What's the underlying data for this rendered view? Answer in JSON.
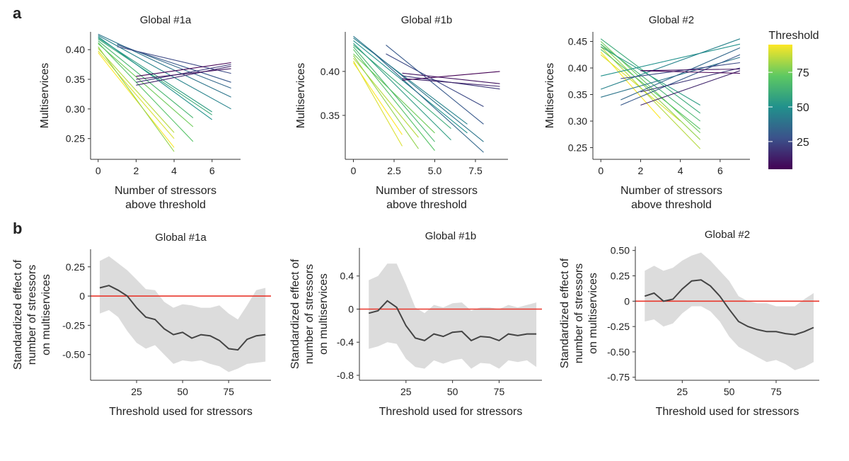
{
  "panel_labels": {
    "a": "a",
    "b": "b"
  },
  "colorbar": {
    "title": "Threshold",
    "ticks": [
      25,
      50,
      75
    ],
    "range": [
      5,
      95
    ],
    "colors": [
      "#440154",
      "#3b528b",
      "#21918c",
      "#5ec962",
      "#fde725"
    ]
  },
  "chart_data": [
    {
      "type": "line",
      "panel": "a",
      "title": "Global #1a",
      "xlabel": [
        "Number of stressors",
        "above threshold"
      ],
      "ylabel": "Multiservices",
      "xlim": [
        -0.4,
        7.5
      ],
      "ylim": [
        0.215,
        0.43
      ],
      "xticks": [
        0,
        2,
        4,
        6
      ],
      "yticks": [
        0.25,
        0.3,
        0.35,
        0.4
      ],
      "ytick_labels": [
        "0.25",
        "0.30",
        "0.35",
        "0.40"
      ],
      "series_note": "one regression line per threshold (colored by threshold)",
      "lines": [
        {
          "threshold": 95,
          "x": [
            0,
            4
          ],
          "y": [
            0.395,
            0.235
          ]
        },
        {
          "threshold": 90,
          "x": [
            0,
            4
          ],
          "y": [
            0.398,
            0.25
          ]
        },
        {
          "threshold": 85,
          "x": [
            0,
            4
          ],
          "y": [
            0.402,
            0.26
          ]
        },
        {
          "threshold": 80,
          "x": [
            0,
            4
          ],
          "y": [
            0.405,
            0.228
          ]
        },
        {
          "threshold": 75,
          "x": [
            0,
            5
          ],
          "y": [
            0.41,
            0.27
          ]
        },
        {
          "threshold": 70,
          "x": [
            0,
            5
          ],
          "y": [
            0.412,
            0.245
          ]
        },
        {
          "threshold": 65,
          "x": [
            0,
            5
          ],
          "y": [
            0.415,
            0.285
          ]
        },
        {
          "threshold": 60,
          "x": [
            0,
            6
          ],
          "y": [
            0.418,
            0.29
          ]
        },
        {
          "threshold": 55,
          "x": [
            0,
            6
          ],
          "y": [
            0.42,
            0.295
          ]
        },
        {
          "threshold": 50,
          "x": [
            0,
            6
          ],
          "y": [
            0.422,
            0.282
          ]
        },
        {
          "threshold": 45,
          "x": [
            0,
            7
          ],
          "y": [
            0.424,
            0.3
          ]
        },
        {
          "threshold": 40,
          "x": [
            0,
            7
          ],
          "y": [
            0.426,
            0.32
          ]
        },
        {
          "threshold": 35,
          "x": [
            1,
            7
          ],
          "y": [
            0.41,
            0.335
          ]
        },
        {
          "threshold": 30,
          "x": [
            1,
            7
          ],
          "y": [
            0.408,
            0.345
          ]
        },
        {
          "threshold": 25,
          "x": [
            1,
            7
          ],
          "y": [
            0.405,
            0.36
          ]
        },
        {
          "threshold": 20,
          "x": [
            2,
            7
          ],
          "y": [
            0.345,
            0.375
          ]
        },
        {
          "threshold": 15,
          "x": [
            2,
            7
          ],
          "y": [
            0.34,
            0.372
          ]
        },
        {
          "threshold": 10,
          "x": [
            2,
            7
          ],
          "y": [
            0.35,
            0.368
          ]
        },
        {
          "threshold": 5,
          "x": [
            2,
            7
          ],
          "y": [
            0.355,
            0.378
          ]
        }
      ]
    },
    {
      "type": "line",
      "panel": "a",
      "title": "Global #1b",
      "xlabel": [
        "Number of stressors",
        "above threshold"
      ],
      "ylabel": "Multiservices",
      "xlim": [
        -0.5,
        9.5
      ],
      "ylim": [
        0.3,
        0.445
      ],
      "xticks": [
        0,
        2.5,
        5.0,
        7.5
      ],
      "xtick_labels": [
        "0",
        "2.5",
        "5.0",
        "7.5"
      ],
      "yticks": [
        0.35,
        0.4
      ],
      "ytick_labels": [
        "0.35",
        "0.40"
      ],
      "series_note": "one regression line per threshold (colored by threshold)",
      "lines": [
        {
          "threshold": 95,
          "x": [
            0,
            3
          ],
          "y": [
            0.41,
            0.328
          ]
        },
        {
          "threshold": 90,
          "x": [
            0,
            3
          ],
          "y": [
            0.412,
            0.315
          ]
        },
        {
          "threshold": 85,
          "x": [
            0,
            4
          ],
          "y": [
            0.415,
            0.325
          ]
        },
        {
          "threshold": 80,
          "x": [
            0,
            4
          ],
          "y": [
            0.418,
            0.312
          ]
        },
        {
          "threshold": 75,
          "x": [
            0,
            5
          ],
          "y": [
            0.42,
            0.33
          ]
        },
        {
          "threshold": 70,
          "x": [
            0,
            5
          ],
          "y": [
            0.425,
            0.31
          ]
        },
        {
          "threshold": 65,
          "x": [
            0,
            5
          ],
          "y": [
            0.428,
            0.32
          ]
        },
        {
          "threshold": 60,
          "x": [
            0,
            6
          ],
          "y": [
            0.43,
            0.335
          ]
        },
        {
          "threshold": 55,
          "x": [
            0,
            6
          ],
          "y": [
            0.432,
            0.322
          ]
        },
        {
          "threshold": 50,
          "x": [
            0,
            7
          ],
          "y": [
            0.435,
            0.33
          ]
        },
        {
          "threshold": 45,
          "x": [
            0,
            7
          ],
          "y": [
            0.438,
            0.34
          ]
        },
        {
          "threshold": 40,
          "x": [
            0,
            8
          ],
          "y": [
            0.44,
            0.32
          ]
        },
        {
          "threshold": 35,
          "x": [
            1,
            8
          ],
          "y": [
            0.425,
            0.308
          ]
        },
        {
          "threshold": 30,
          "x": [
            2,
            8
          ],
          "y": [
            0.43,
            0.34
          ]
        },
        {
          "threshold": 25,
          "x": [
            2,
            8
          ],
          "y": [
            0.42,
            0.36
          ]
        },
        {
          "threshold": 20,
          "x": [
            3,
            9
          ],
          "y": [
            0.395,
            0.38
          ]
        },
        {
          "threshold": 15,
          "x": [
            3,
            9
          ],
          "y": [
            0.392,
            0.383
          ]
        },
        {
          "threshold": 10,
          "x": [
            3,
            9
          ],
          "y": [
            0.398,
            0.386
          ]
        },
        {
          "threshold": 5,
          "x": [
            3,
            9
          ],
          "y": [
            0.39,
            0.4
          ]
        }
      ]
    },
    {
      "type": "line",
      "panel": "a",
      "title": "Global #2",
      "xlabel": [
        "Number of stressors",
        "above threshold"
      ],
      "ylabel": "Multiservices",
      "xlim": [
        -0.4,
        7.5
      ],
      "ylim": [
        0.228,
        0.468
      ],
      "xticks": [
        0,
        2,
        4,
        6
      ],
      "yticks": [
        0.25,
        0.3,
        0.35,
        0.4,
        0.45
      ],
      "ytick_labels": [
        "0.25",
        "0.30",
        "0.35",
        "0.40",
        "0.45"
      ],
      "series_note": "one regression line per threshold (colored by threshold)",
      "lines": [
        {
          "threshold": 95,
          "x": [
            0,
            3
          ],
          "y": [
            0.43,
            0.305
          ]
        },
        {
          "threshold": 90,
          "x": [
            0,
            4
          ],
          "y": [
            0.425,
            0.3
          ]
        },
        {
          "threshold": 85,
          "x": [
            0,
            5
          ],
          "y": [
            0.44,
            0.248
          ]
        },
        {
          "threshold": 80,
          "x": [
            0,
            5
          ],
          "y": [
            0.445,
            0.265
          ]
        },
        {
          "threshold": 75,
          "x": [
            0,
            5
          ],
          "y": [
            0.45,
            0.278
          ]
        },
        {
          "threshold": 70,
          "x": [
            0,
            5
          ],
          "y": [
            0.435,
            0.285
          ]
        },
        {
          "threshold": 65,
          "x": [
            0,
            5
          ],
          "y": [
            0.445,
            0.3
          ]
        },
        {
          "threshold": 60,
          "x": [
            0,
            5
          ],
          "y": [
            0.455,
            0.315
          ]
        },
        {
          "threshold": 55,
          "x": [
            0,
            5
          ],
          "y": [
            0.44,
            0.33
          ]
        },
        {
          "threshold": 50,
          "x": [
            0,
            7
          ],
          "y": [
            0.385,
            0.445
          ]
        },
        {
          "threshold": 45,
          "x": [
            0,
            7
          ],
          "y": [
            0.36,
            0.455
          ]
        },
        {
          "threshold": 40,
          "x": [
            0,
            7
          ],
          "y": [
            0.345,
            0.42
          ]
        },
        {
          "threshold": 35,
          "x": [
            1,
            7
          ],
          "y": [
            0.34,
            0.438
          ]
        },
        {
          "threshold": 30,
          "x": [
            1,
            7
          ],
          "y": [
            0.33,
            0.425
          ]
        },
        {
          "threshold": 25,
          "x": [
            1,
            7
          ],
          "y": [
            0.38,
            0.41
          ]
        },
        {
          "threshold": 20,
          "x": [
            2,
            7
          ],
          "y": [
            0.355,
            0.4
          ]
        },
        {
          "threshold": 15,
          "x": [
            2,
            7
          ],
          "y": [
            0.33,
            0.395
          ]
        },
        {
          "threshold": 10,
          "x": [
            2,
            7
          ],
          "y": [
            0.395,
            0.398
          ]
        },
        {
          "threshold": 5,
          "x": [
            2,
            7
          ],
          "y": [
            0.395,
            0.39
          ]
        }
      ]
    },
    {
      "type": "line",
      "panel": "b",
      "title": "Global #1a",
      "xlabel": "Threshold used for stressors",
      "ylabel": [
        "Standardized effect of",
        "number of stressors",
        "on multiservices"
      ],
      "xlim": [
        0,
        98
      ],
      "ylim": [
        -0.72,
        0.4
      ],
      "xticks": [
        25,
        50,
        75
      ],
      "yticks": [
        -0.5,
        -0.25,
        0,
        0.25
      ],
      "ytick_labels": [
        "-0.50",
        "-0.25",
        "0",
        "0.25"
      ],
      "zero_line": true,
      "x": [
        5,
        10,
        15,
        20,
        25,
        30,
        35,
        40,
        45,
        50,
        55,
        60,
        65,
        70,
        75,
        80,
        85,
        90,
        95
      ],
      "y": [
        0.07,
        0.09,
        0.05,
        0.0,
        -0.1,
        -0.18,
        -0.2,
        -0.28,
        -0.33,
        -0.31,
        -0.36,
        -0.33,
        -0.34,
        -0.38,
        -0.45,
        -0.46,
        -0.37,
        -0.34,
        -0.33
      ],
      "lower": [
        -0.15,
        -0.12,
        -0.18,
        -0.3,
        -0.4,
        -0.45,
        -0.42,
        -0.5,
        -0.58,
        -0.55,
        -0.56,
        -0.55,
        -0.58,
        -0.6,
        -0.65,
        -0.62,
        -0.58,
        -0.57,
        -0.56
      ],
      "upper": [
        0.3,
        0.34,
        0.28,
        0.22,
        0.14,
        0.06,
        0.05,
        -0.05,
        -0.1,
        -0.07,
        -0.08,
        -0.1,
        -0.1,
        -0.08,
        -0.15,
        -0.2,
        -0.08,
        0.05,
        0.07
      ]
    },
    {
      "type": "line",
      "panel": "b",
      "title": "Global #1b",
      "xlabel": "Threshold used for stressors",
      "ylabel": [
        "Standardized effect of",
        "number of stressors",
        "on multiservices"
      ],
      "xlim": [
        0,
        98
      ],
      "ylim": [
        -0.86,
        0.74
      ],
      "xticks": [
        25,
        50,
        75
      ],
      "yticks": [
        -0.8,
        -0.4,
        0,
        0.4
      ],
      "ytick_labels": [
        "-0.8",
        "-0.4",
        "0",
        "0.4"
      ],
      "zero_line": true,
      "x": [
        5,
        10,
        15,
        20,
        25,
        30,
        35,
        40,
        45,
        50,
        55,
        60,
        65,
        70,
        75,
        80,
        85,
        90,
        95
      ],
      "y": [
        -0.05,
        -0.02,
        0.1,
        0.02,
        -0.2,
        -0.35,
        -0.38,
        -0.3,
        -0.33,
        -0.28,
        -0.27,
        -0.38,
        -0.33,
        -0.34,
        -0.38,
        -0.3,
        -0.32,
        -0.3,
        -0.3
      ],
      "lower": [
        -0.48,
        -0.45,
        -0.4,
        -0.42,
        -0.6,
        -0.7,
        -0.72,
        -0.62,
        -0.66,
        -0.62,
        -0.6,
        -0.72,
        -0.65,
        -0.66,
        -0.72,
        -0.62,
        -0.64,
        -0.62,
        -0.7
      ],
      "upper": [
        0.35,
        0.4,
        0.55,
        0.55,
        0.3,
        0.02,
        -0.05,
        0.05,
        0.02,
        0.07,
        0.08,
        -0.02,
        0.02,
        0.02,
        0.0,
        0.05,
        0.02,
        0.05,
        0.08
      ]
    },
    {
      "type": "line",
      "panel": "b",
      "title": "Global #2",
      "xlabel": "Threshold used for stressors",
      "ylabel": [
        "Standardized effect of",
        "number of stressors",
        "on multiservices"
      ],
      "xlim": [
        0,
        98
      ],
      "ylim": [
        -0.78,
        0.54
      ],
      "xticks": [
        25,
        50,
        75
      ],
      "yticks": [
        -0.75,
        -0.5,
        -0.25,
        0,
        0.25,
        0.5
      ],
      "ytick_labels": [
        "-0.75",
        "-0.50",
        "-0.25",
        "0",
        "0.25",
        "0.50"
      ],
      "zero_line": true,
      "x": [
        5,
        10,
        15,
        20,
        25,
        30,
        35,
        40,
        45,
        50,
        55,
        60,
        65,
        70,
        75,
        80,
        85,
        90,
        95
      ],
      "y": [
        0.05,
        0.08,
        0.0,
        0.02,
        0.12,
        0.2,
        0.21,
        0.15,
        0.05,
        -0.08,
        -0.2,
        -0.25,
        -0.28,
        -0.3,
        -0.3,
        -0.32,
        -0.33,
        -0.3,
        -0.26
      ],
      "lower": [
        -0.2,
        -0.18,
        -0.25,
        -0.22,
        -0.12,
        -0.05,
        -0.05,
        -0.1,
        -0.2,
        -0.35,
        -0.45,
        -0.5,
        -0.55,
        -0.6,
        -0.58,
        -0.62,
        -0.68,
        -0.65,
        -0.6
      ],
      "upper": [
        0.3,
        0.35,
        0.3,
        0.33,
        0.4,
        0.45,
        0.48,
        0.4,
        0.3,
        0.2,
        0.05,
        0.0,
        -0.02,
        -0.02,
        -0.05,
        -0.05,
        -0.05,
        0.02,
        0.08
      ]
    }
  ]
}
